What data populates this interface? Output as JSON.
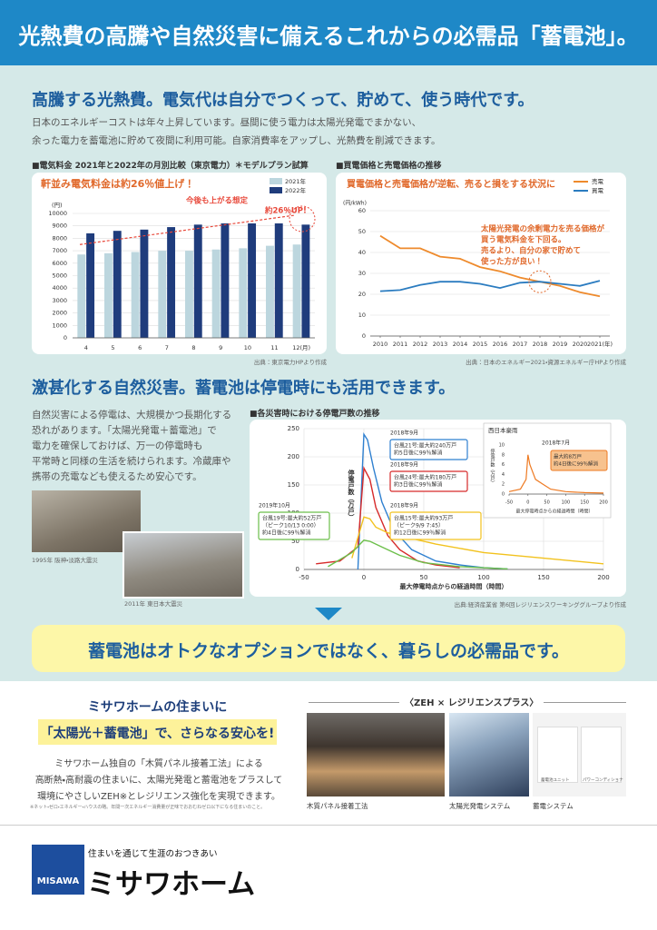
{
  "header": {
    "title": "光熱費の高騰や自然災害に備えるこれからの必需品「蓄電池」。"
  },
  "section1": {
    "heading": "高騰する光熱費。電気代は自分でつくって、貯めて、使う時代です。",
    "body": [
      "日本のエネルギーコストは年々上昇しています。昼間に使う電力は太陽光発電でまかない、",
      "余った電力を蓄電池に貯めて夜間に利用可能。自家消費率をアップし、光熱費を削減できます。"
    ]
  },
  "section2": {
    "heading": "激甚化する自然災害。蓄電池は停電時にも活用できます。",
    "body": [
      "自然災害による停電は、大規模かつ長期化する",
      "恐れがあります。「太陽光発電＋蓄電池」で",
      "電力を確保しておけば、万一の停電時も",
      "平常時と同様の生活を続けられます。冷蔵庫や",
      "携帯の充電なども使えるため安心です。"
    ],
    "photos": [
      "1995年 阪神・淡路大震災",
      "2011年 東日本大震災"
    ]
  },
  "banner": "蓄電池はオトクなオプションではなく、暮らしの必需品です。",
  "bottom": {
    "lead": "ミサワホームの住まいに",
    "headline": "「太陽光＋蓄電池」で、さらなる安心を!",
    "body": [
      "ミサワホーム独自の「木質パネル接着工法」による",
      "高断熱・高耐震の住まいに、太陽光発電と蓄電池をプラスして",
      "環境にやさしいZEH※とレジリエンス強化を実現できます。"
    ],
    "note": "※ネット・ゼロ・エネルギー・ハウスの略。年間一次エネルギー消費量が正味でおおむねゼロ以下になる住まいのこと。",
    "zeh_title": "〈ZEH × レジリエンスプラス〉",
    "photos": [
      "木質パネル接着工法",
      "太陽光発電システム",
      "蓄電システム"
    ],
    "storage_labels": [
      "蓄電池ユニット",
      "パワーコンディショナ"
    ]
  },
  "footer": {
    "logo": "MISAWA",
    "tagline": "住まいを通じて生涯のおつきあい",
    "brand": "ミサワホーム"
  },
  "chart_data": [
    {
      "type": "bar",
      "caption": "■電気料金 2021年と2022年の月別比較（東京電力）＊モデルプラン試算",
      "title": "軒並み電気料金は約26％値上げ！",
      "y_unit": "(円)",
      "categories": [
        "4",
        "5",
        "6",
        "7",
        "8",
        "9",
        "10",
        "11",
        "12(月)"
      ],
      "series": [
        {
          "name": "2021年",
          "color": "#bcd6de",
          "values": [
            6700,
            6800,
            6900,
            7000,
            7000,
            7100,
            7200,
            7400,
            7500
          ]
        },
        {
          "name": "2022年",
          "color": "#1f3c7c",
          "values": [
            8400,
            8600,
            8700,
            8900,
            9100,
            9200,
            9200,
            9200,
            9100
          ]
        }
      ],
      "ylim": [
        0,
        10000
      ],
      "yticks": [
        0,
        1000,
        2000,
        3000,
        4000,
        5000,
        6000,
        7000,
        8000,
        9000,
        10000
      ],
      "grid": true,
      "annotations": [
        "今後も上がる想定",
        "約26％UP!"
      ],
      "source": "出典：東京電力HPより作成"
    },
    {
      "type": "line",
      "caption": "■買電価格と売電価格の推移",
      "title": "買電価格と売電価格が逆転、売ると損をする状況に",
      "y_unit": "(円/kWh)",
      "x": [
        2010,
        2011,
        2012,
        2013,
        2014,
        2015,
        2016,
        2017,
        2018,
        2019,
        2020,
        2021
      ],
      "series": [
        {
          "name": "売電",
          "color": "#ee8a2c",
          "values": [
            48,
            42,
            42,
            38,
            37,
            33,
            31,
            28,
            26,
            24,
            21,
            19
          ]
        },
        {
          "name": "買電",
          "color": "#2b7cc0",
          "values": [
            21.5,
            22,
            24.5,
            26,
            26,
            25,
            23,
            25.5,
            26,
            25,
            24,
            26.5
          ]
        }
      ],
      "xlim": [
        2009.5,
        2021.5
      ],
      "xticks": [
        2010,
        2011,
        2012,
        2013,
        2014,
        2015,
        2016,
        2017,
        2018,
        2019,
        2020,
        {
          "value": 2021,
          "label": "2021(年)"
        }
      ],
      "ylim": [
        0,
        60
      ],
      "yticks": [
        0,
        10,
        20,
        30,
        40,
        50,
        60
      ],
      "grid": true,
      "annotation": [
        "太陽光発電の余剰電力を売る価格が",
        "買う電気料金を下回る。",
        "売るより、自分の家で貯めて",
        "使った方が良い！"
      ],
      "source": "出典：日本のエネルギー2021・資源エネルギー庁HPより作成"
    },
    {
      "type": "line",
      "caption": "■各災害時における停電戸数の推移",
      "y_label": "停電戸数（万戸）",
      "x_label": "最大停電時点からの経過時間（時間）",
      "xlim": [
        -50,
        200
      ],
      "xticks": [
        -50,
        0,
        50,
        100,
        150,
        200
      ],
      "ylim": [
        0,
        250
      ],
      "yticks": [
        0,
        50,
        100,
        150,
        200,
        250
      ],
      "grid": true,
      "series": [
        {
          "date": "2018年9月",
          "label": [
            "台風21号:最大約240万戸",
            "約5日後に99％解消"
          ],
          "color": "#2f80d0",
          "x": [
            -5,
            0,
            3,
            8,
            15,
            25,
            40,
            60,
            80,
            100,
            120
          ],
          "values": [
            0,
            240,
            230,
            180,
            120,
            70,
            35,
            15,
            8,
            3,
            1
          ]
        },
        {
          "date": "2018年9月",
          "label": [
            "台風24号:最大約180万戸",
            "約3日後に99％解消"
          ],
          "color": "#d62a2a",
          "x": [
            -40,
            -20,
            -5,
            0,
            5,
            10,
            20,
            30,
            45,
            60,
            80
          ],
          "values": [
            10,
            15,
            40,
            180,
            160,
            110,
            60,
            35,
            15,
            8,
            3
          ]
        },
        {
          "date": "2018年9月",
          "label": [
            "台風15号:最大約93万戸",
            "（ピーク9/9 7:45）",
            "約12日後に99％解消"
          ],
          "color": "#f2c21e",
          "x": [
            -10,
            0,
            5,
            10,
            20,
            40,
            60,
            100,
            150,
            200
          ],
          "values": [
            20,
            93,
            90,
            75,
            65,
            55,
            45,
            30,
            20,
            10
          ]
        },
        {
          "date": "2019年10月",
          "label": [
            "台風19号:最大約52万戸",
            "（ピーク10/13 0:00）",
            "約4日後に99％解消"
          ],
          "color": "#6cbf4a",
          "x": [
            -30,
            -10,
            0,
            5,
            15,
            30,
            50,
            80,
            120
          ],
          "values": [
            5,
            30,
            52,
            50,
            40,
            25,
            12,
            5,
            1
          ]
        }
      ],
      "inset": {
        "title": "西日本豪雨",
        "date": "2018年7月",
        "label": [
          "最大約8万戸",
          "約4日後に99％解消"
        ],
        "color": "#ee7a22",
        "y_label": "停電戸数（万戸）",
        "x_label": "最大停電時点からの経過時間（時間）",
        "x": [
          -50,
          -20,
          -5,
          0,
          5,
          20,
          40,
          60,
          100,
          150,
          200
        ],
        "values": [
          0.5,
          1,
          3,
          8,
          6,
          3,
          2,
          1,
          0.5,
          0.3,
          0.2
        ],
        "xlim": [
          -50,
          200
        ],
        "xticks": [
          -50,
          0,
          50,
          100,
          150,
          200
        ],
        "ylim": [
          0,
          10
        ],
        "yticks": [
          0,
          2,
          4,
          6,
          8,
          10
        ]
      },
      "source": "出典:経済産業省 第6回レジリエンスワーキンググループより作成"
    }
  ]
}
